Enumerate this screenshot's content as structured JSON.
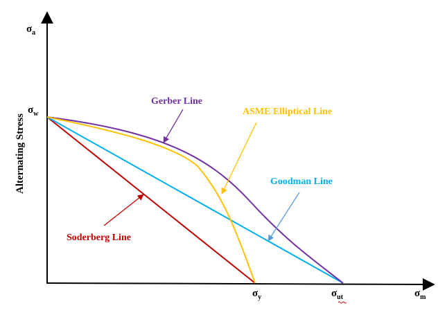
{
  "y_axis": {
    "title": "Alternating Stress",
    "symbol": {
      "base": "σ",
      "sub": "a"
    }
  },
  "x_axis": {
    "symbol": {
      "base": "σ",
      "sub": "m"
    }
  },
  "intercepts": {
    "endurance": {
      "base": "σ",
      "sub": "w"
    },
    "yield": {
      "base": "σ",
      "sub": "y"
    },
    "ultimate": {
      "base": "σ",
      "sub": "ut"
    }
  },
  "lines": {
    "gerber": {
      "label": "Gerber Line",
      "color": "#7030a0"
    },
    "asme": {
      "label": "ASME Elliptical Line",
      "color": "#ffc000"
    },
    "goodman": {
      "label": "Goodman Line",
      "color": "#00b0f0"
    },
    "soderberg": {
      "label": "Soderberg Line",
      "color": "#c00000"
    }
  },
  "axis_color": "#000000"
}
